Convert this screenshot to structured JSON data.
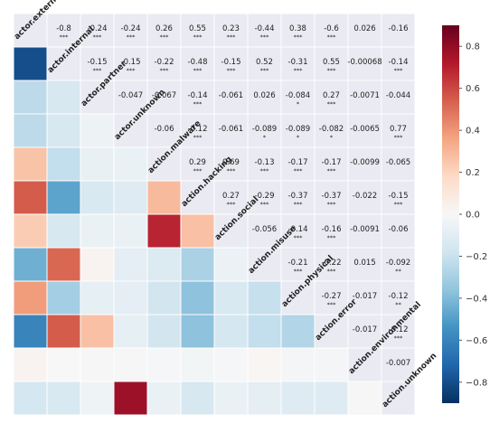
{
  "chart_data": {
    "type": "heatmap",
    "variables": [
      "actor.external",
      "actor.internal",
      "actor.partner",
      "actor.unknown",
      "action.malware",
      "action.hacking",
      "action.social",
      "action.misuse",
      "action.physical",
      "action.error",
      "action.environmental",
      "action.unknown"
    ],
    "upper_triangle_labels": [
      [
        null,
        "-0.8",
        "-0.24",
        "-0.24",
        "0.26",
        "0.55",
        "0.23",
        "-0.44",
        "0.38",
        "-0.6",
        "0.026",
        "-0.16"
      ],
      [
        null,
        null,
        "-0.15",
        "-0.15",
        "-0.22",
        "-0.48",
        "-0.15",
        "0.52",
        "-0.31",
        "0.55",
        "-0.00068",
        "-0.14"
      ],
      [
        null,
        null,
        null,
        "-0.047",
        "-0.067",
        "-0.14",
        "-0.061",
        "0.026",
        "-0.084",
        "0.27",
        "-0.0071",
        "-0.044"
      ],
      [
        null,
        null,
        null,
        null,
        "-0.06",
        "-0.12",
        "-0.061",
        "-0.089",
        "-0.089",
        "-0.082",
        "-0.0065",
        "0.77"
      ],
      [
        null,
        null,
        null,
        null,
        null,
        "0.29",
        "0.69",
        "-0.13",
        "-0.17",
        "-0.17",
        "-0.0099",
        "-0.065"
      ],
      [
        null,
        null,
        null,
        null,
        null,
        null,
        "0.27",
        "-0.29",
        "-0.37",
        "-0.37",
        "-0.022",
        "-0.15"
      ],
      [
        null,
        null,
        null,
        null,
        null,
        null,
        null,
        "-0.056",
        "-0.14",
        "-0.16",
        "-0.0091",
        "-0.06"
      ],
      [
        null,
        null,
        null,
        null,
        null,
        null,
        null,
        null,
        "-0.21",
        "-0.22",
        "0.015",
        "-0.092"
      ],
      [
        null,
        null,
        null,
        null,
        null,
        null,
        null,
        null,
        null,
        "-0.27",
        "-0.017",
        "-0.12"
      ],
      [
        null,
        null,
        null,
        null,
        null,
        null,
        null,
        null,
        null,
        null,
        "-0.017",
        "-0.12"
      ],
      [
        null,
        null,
        null,
        null,
        null,
        null,
        null,
        null,
        null,
        null,
        null,
        "-0.007"
      ],
      [
        null,
        null,
        null,
        null,
        null,
        null,
        null,
        null,
        null,
        null,
        null,
        null
      ]
    ],
    "significance": [
      [
        null,
        "***",
        "***",
        "***",
        "***",
        "***",
        "***",
        "***",
        "***",
        "***",
        "",
        ""
      ],
      [
        null,
        null,
        "***",
        "***",
        "***",
        "***",
        "***",
        "***",
        "***",
        "***",
        "",
        "***"
      ],
      [
        null,
        null,
        null,
        "",
        "",
        "***",
        "",
        "",
        "*",
        "***",
        "",
        ""
      ],
      [
        null,
        null,
        null,
        null,
        "",
        "***",
        "",
        "*",
        "*",
        "*",
        "",
        "***"
      ],
      [
        null,
        null,
        null,
        null,
        null,
        "***",
        "***",
        "***",
        "***",
        "***",
        "",
        ""
      ],
      [
        null,
        null,
        null,
        null,
        null,
        null,
        "***",
        "***",
        "***",
        "***",
        "",
        "***"
      ],
      [
        null,
        null,
        null,
        null,
        null,
        null,
        null,
        "",
        "***",
        "***",
        "",
        ""
      ],
      [
        null,
        null,
        null,
        null,
        null,
        null,
        null,
        null,
        "***",
        "***",
        "",
        "**"
      ],
      [
        null,
        null,
        null,
        null,
        null,
        null,
        null,
        null,
        null,
        "***",
        "",
        "**"
      ],
      [
        null,
        null,
        null,
        null,
        null,
        null,
        null,
        null,
        null,
        null,
        "",
        "***"
      ],
      [
        null,
        null,
        null,
        null,
        null,
        null,
        null,
        null,
        null,
        null,
        null,
        ""
      ],
      [
        null,
        null,
        null,
        null,
        null,
        null,
        null,
        null,
        null,
        null,
        null,
        null
      ]
    ],
    "colorbar": {
      "min": -0.9,
      "max": 0.9,
      "ticks": [
        0.8,
        0.6,
        0.4,
        0.2,
        0.0,
        -0.2,
        -0.4,
        -0.6,
        -0.8
      ],
      "tick_labels": [
        "0.8",
        "0.6",
        "0.4",
        "0.2",
        "0.0",
        "−0.2",
        "−0.4",
        "−0.6",
        "−0.8"
      ],
      "colormap": "RdBu_r",
      "colors": [
        "#053061",
        "#2166ac",
        "#4393c3",
        "#92c5de",
        "#d1e5f0",
        "#f7f7f7",
        "#fddbc7",
        "#f4a582",
        "#d6604d",
        "#b2182b",
        "#67001f"
      ]
    },
    "grid": true,
    "title": "",
    "xlabel": "",
    "ylabel": ""
  }
}
